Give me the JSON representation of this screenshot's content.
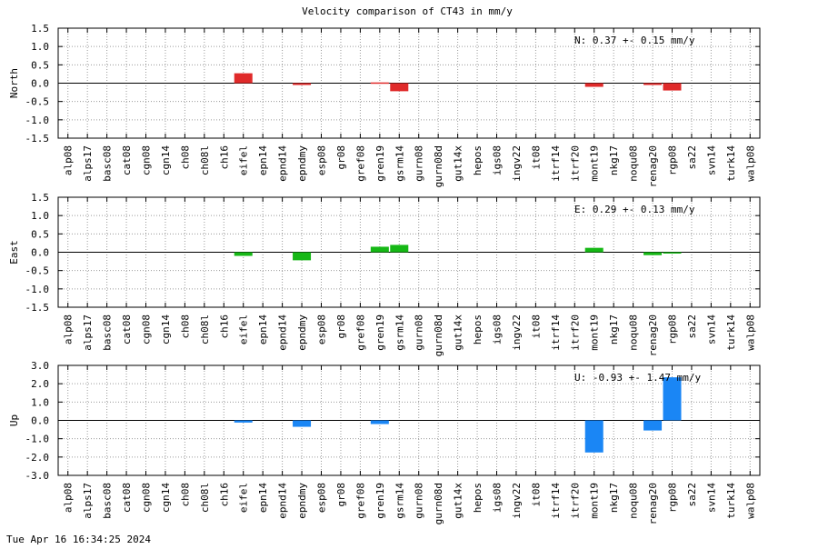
{
  "title": "Velocity comparison of CT43 in mm/y",
  "timestamp": "Tue Apr 16 16:34:25 2024",
  "chart_data": {
    "type": "bar",
    "categories": [
      "alp08",
      "alps17",
      "basc08",
      "cat08",
      "cgn08",
      "cgn14",
      "ch08",
      "ch08l",
      "ch16",
      "eifel",
      "epn14",
      "epnd14",
      "epndmy",
      "esp08",
      "gr08",
      "gref08",
      "gren19",
      "gsrm14",
      "gurn08",
      "gurn08d",
      "gut14x",
      "hepos",
      "igs08",
      "ingv22",
      "it08",
      "itrf14",
      "itrf20",
      "mont19",
      "nkg17",
      "noqu08",
      "renag20",
      "rgp08",
      "sa22",
      "svn14",
      "turk14",
      "walp08"
    ],
    "panels": [
      {
        "ylabel": "North",
        "color": "#e02a2a",
        "ylim": [
          -1.5,
          1.5
        ],
        "yticks": [
          "1.5",
          "1.0",
          "0.5",
          "0.0",
          "-0.5",
          "-1.0",
          "-1.5"
        ],
        "yticks_values": [
          1.5,
          1.0,
          0.5,
          0.0,
          -0.5,
          -1.0,
          -1.5
        ],
        "stat": "N:   0.37 +-  0.15 mm/y",
        "values": [
          null,
          null,
          null,
          null,
          null,
          null,
          null,
          null,
          null,
          0.27,
          null,
          null,
          -0.05,
          null,
          null,
          null,
          0.02,
          -0.22,
          null,
          null,
          null,
          null,
          null,
          null,
          null,
          null,
          null,
          -0.1,
          null,
          null,
          -0.05,
          -0.2,
          null,
          null,
          null,
          null
        ]
      },
      {
        "ylabel": "East",
        "color": "#16b816",
        "ylim": [
          -1.5,
          1.5
        ],
        "yticks": [
          "1.5",
          "1.0",
          "0.5",
          "0.0",
          "-0.5",
          "-1.0",
          "-1.5"
        ],
        "yticks_values": [
          1.5,
          1.0,
          0.5,
          0.0,
          -0.5,
          -1.0,
          -1.5
        ],
        "stat": "E:   0.29 +-  0.13 mm/y",
        "values": [
          null,
          null,
          null,
          null,
          null,
          null,
          null,
          null,
          null,
          -0.1,
          null,
          null,
          -0.22,
          null,
          null,
          null,
          0.15,
          0.2,
          null,
          null,
          null,
          null,
          null,
          null,
          null,
          null,
          null,
          0.12,
          null,
          null,
          -0.08,
          -0.02,
          null,
          null,
          null,
          null
        ]
      },
      {
        "ylabel": "Up",
        "color": "#1a86f5",
        "ylim": [
          -3.0,
          3.0
        ],
        "yticks": [
          "3.0",
          "2.0",
          "1.0",
          "0.0",
          "-1.0",
          "-2.0",
          "-3.0"
        ],
        "yticks_values": [
          3.0,
          2.0,
          1.0,
          0.0,
          -1.0,
          -2.0,
          -3.0
        ],
        "stat": "U:  -0.93 +-  1.47 mm/y",
        "values": [
          null,
          null,
          null,
          null,
          null,
          null,
          null,
          null,
          null,
          -0.12,
          null,
          null,
          -0.35,
          null,
          null,
          null,
          -0.2,
          null,
          null,
          null,
          null,
          null,
          null,
          null,
          null,
          null,
          null,
          -1.75,
          null,
          null,
          -0.55,
          2.35,
          null,
          null,
          null,
          null
        ]
      }
    ]
  }
}
